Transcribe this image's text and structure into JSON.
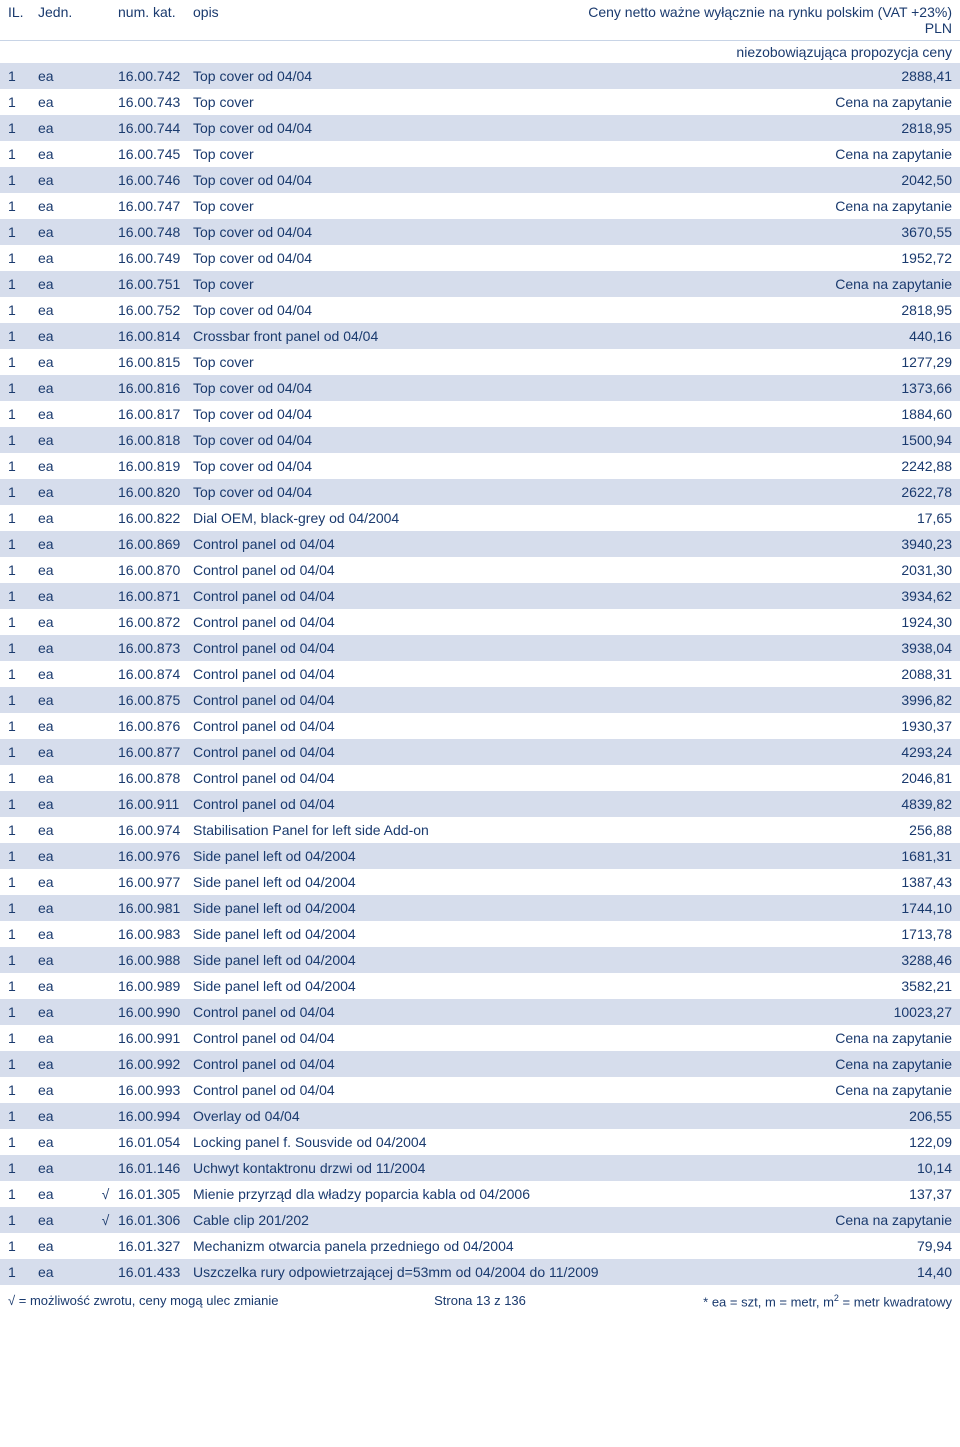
{
  "header": {
    "il": "IL.",
    "jedn": "Jedn.",
    "num_kat": "num. kat.",
    "opis": "opis",
    "right_note": "Ceny netto ważne wyłącznie na rynku polskim (VAT +23%) PLN",
    "sub_note": "niezobowiązująca propozycja ceny"
  },
  "rows": [
    {
      "il": "1",
      "jedn": "ea",
      "check": "",
      "num": "16.00.742",
      "opis": "Top cover od 04/04",
      "price": "2888,41"
    },
    {
      "il": "1",
      "jedn": "ea",
      "check": "",
      "num": "16.00.743",
      "opis": "Top cover",
      "price": "Cena na zapytanie"
    },
    {
      "il": "1",
      "jedn": "ea",
      "check": "",
      "num": "16.00.744",
      "opis": "Top cover od 04/04",
      "price": "2818,95"
    },
    {
      "il": "1",
      "jedn": "ea",
      "check": "",
      "num": "16.00.745",
      "opis": "Top cover",
      "price": "Cena na zapytanie"
    },
    {
      "il": "1",
      "jedn": "ea",
      "check": "",
      "num": "16.00.746",
      "opis": "Top cover od 04/04",
      "price": "2042,50"
    },
    {
      "il": "1",
      "jedn": "ea",
      "check": "",
      "num": "16.00.747",
      "opis": "Top cover",
      "price": "Cena na zapytanie"
    },
    {
      "il": "1",
      "jedn": "ea",
      "check": "",
      "num": "16.00.748",
      "opis": "Top cover od 04/04",
      "price": "3670,55"
    },
    {
      "il": "1",
      "jedn": "ea",
      "check": "",
      "num": "16.00.749",
      "opis": "Top cover od 04/04",
      "price": "1952,72"
    },
    {
      "il": "1",
      "jedn": "ea",
      "check": "",
      "num": "16.00.751",
      "opis": "Top cover",
      "price": "Cena na zapytanie"
    },
    {
      "il": "1",
      "jedn": "ea",
      "check": "",
      "num": "16.00.752",
      "opis": "Top cover od 04/04",
      "price": "2818,95"
    },
    {
      "il": "1",
      "jedn": "ea",
      "check": "",
      "num": "16.00.814",
      "opis": "Crossbar front panel od 04/04",
      "price": "440,16"
    },
    {
      "il": "1",
      "jedn": "ea",
      "check": "",
      "num": "16.00.815",
      "opis": "Top cover",
      "price": "1277,29"
    },
    {
      "il": "1",
      "jedn": "ea",
      "check": "",
      "num": "16.00.816",
      "opis": "Top cover od 04/04",
      "price": "1373,66"
    },
    {
      "il": "1",
      "jedn": "ea",
      "check": "",
      "num": "16.00.817",
      "opis": "Top cover od 04/04",
      "price": "1884,60"
    },
    {
      "il": "1",
      "jedn": "ea",
      "check": "",
      "num": "16.00.818",
      "opis": "Top cover od 04/04",
      "price": "1500,94"
    },
    {
      "il": "1",
      "jedn": "ea",
      "check": "",
      "num": "16.00.819",
      "opis": "Top cover od 04/04",
      "price": "2242,88"
    },
    {
      "il": "1",
      "jedn": "ea",
      "check": "",
      "num": "16.00.820",
      "opis": "Top cover od 04/04",
      "price": "2622,78"
    },
    {
      "il": "1",
      "jedn": "ea",
      "check": "",
      "num": "16.00.822",
      "opis": "Dial OEM, black-grey od 04/2004",
      "price": "17,65"
    },
    {
      "il": "1",
      "jedn": "ea",
      "check": "",
      "num": "16.00.869",
      "opis": "Control panel od 04/04",
      "price": "3940,23"
    },
    {
      "il": "1",
      "jedn": "ea",
      "check": "",
      "num": "16.00.870",
      "opis": "Control panel od 04/04",
      "price": "2031,30"
    },
    {
      "il": "1",
      "jedn": "ea",
      "check": "",
      "num": "16.00.871",
      "opis": "Control panel od 04/04",
      "price": "3934,62"
    },
    {
      "il": "1",
      "jedn": "ea",
      "check": "",
      "num": "16.00.872",
      "opis": "Control panel od 04/04",
      "price": "1924,30"
    },
    {
      "il": "1",
      "jedn": "ea",
      "check": "",
      "num": "16.00.873",
      "opis": "Control panel od 04/04",
      "price": "3938,04"
    },
    {
      "il": "1",
      "jedn": "ea",
      "check": "",
      "num": "16.00.874",
      "opis": "Control panel od 04/04",
      "price": "2088,31"
    },
    {
      "il": "1",
      "jedn": "ea",
      "check": "",
      "num": "16.00.875",
      "opis": "Control panel od 04/04",
      "price": "3996,82"
    },
    {
      "il": "1",
      "jedn": "ea",
      "check": "",
      "num": "16.00.876",
      "opis": "Control panel od 04/04",
      "price": "1930,37"
    },
    {
      "il": "1",
      "jedn": "ea",
      "check": "",
      "num": "16.00.877",
      "opis": "Control panel od 04/04",
      "price": "4293,24"
    },
    {
      "il": "1",
      "jedn": "ea",
      "check": "",
      "num": "16.00.878",
      "opis": "Control panel od 04/04",
      "price": "2046,81"
    },
    {
      "il": "1",
      "jedn": "ea",
      "check": "",
      "num": "16.00.911",
      "opis": "Control panel od 04/04",
      "price": "4839,82"
    },
    {
      "il": "1",
      "jedn": "ea",
      "check": "",
      "num": "16.00.974",
      "opis": "Stabilisation Panel for left side Add-on",
      "price": "256,88"
    },
    {
      "il": "1",
      "jedn": "ea",
      "check": "",
      "num": "16.00.976",
      "opis": "Side panel left od 04/2004",
      "price": "1681,31"
    },
    {
      "il": "1",
      "jedn": "ea",
      "check": "",
      "num": "16.00.977",
      "opis": "Side panel left od 04/2004",
      "price": "1387,43"
    },
    {
      "il": "1",
      "jedn": "ea",
      "check": "",
      "num": "16.00.981",
      "opis": "Side panel left od 04/2004",
      "price": "1744,10"
    },
    {
      "il": "1",
      "jedn": "ea",
      "check": "",
      "num": "16.00.983",
      "opis": "Side panel left od 04/2004",
      "price": "1713,78"
    },
    {
      "il": "1",
      "jedn": "ea",
      "check": "",
      "num": "16.00.988",
      "opis": "Side panel left od 04/2004",
      "price": "3288,46"
    },
    {
      "il": "1",
      "jedn": "ea",
      "check": "",
      "num": "16.00.989",
      "opis": "Side panel left od 04/2004",
      "price": "3582,21"
    },
    {
      "il": "1",
      "jedn": "ea",
      "check": "",
      "num": "16.00.990",
      "opis": "Control panel od 04/04",
      "price": "10023,27"
    },
    {
      "il": "1",
      "jedn": "ea",
      "check": "",
      "num": "16.00.991",
      "opis": "Control panel od 04/04",
      "price": "Cena na zapytanie"
    },
    {
      "il": "1",
      "jedn": "ea",
      "check": "",
      "num": "16.00.992",
      "opis": "Control panel od 04/04",
      "price": "Cena na zapytanie"
    },
    {
      "il": "1",
      "jedn": "ea",
      "check": "",
      "num": "16.00.993",
      "opis": "Control panel od 04/04",
      "price": "Cena na zapytanie"
    },
    {
      "il": "1",
      "jedn": "ea",
      "check": "",
      "num": "16.00.994",
      "opis": "Overlay od 04/04",
      "price": "206,55"
    },
    {
      "il": "1",
      "jedn": "ea",
      "check": "",
      "num": "16.01.054",
      "opis": "Locking panel f. Sousvide od 04/2004",
      "price": "122,09"
    },
    {
      "il": "1",
      "jedn": "ea",
      "check": "",
      "num": "16.01.146",
      "opis": "Uchwyt kontaktronu drzwi od 11/2004",
      "price": "10,14"
    },
    {
      "il": "1",
      "jedn": "ea",
      "check": "√",
      "num": "16.01.305",
      "opis": "Mienie przyrząd dla władzy poparcia kabla od 04/2006",
      "price": "137,37"
    },
    {
      "il": "1",
      "jedn": "ea",
      "check": "√",
      "num": "16.01.306",
      "opis": "Cable clip 201/202",
      "price": "Cena na zapytanie"
    },
    {
      "il": "1",
      "jedn": "ea",
      "check": "",
      "num": "16.01.327",
      "opis": "Mechanizm otwarcia panela przedniego od 04/2004",
      "price": "79,94"
    },
    {
      "il": "1",
      "jedn": "ea",
      "check": "",
      "num": "16.01.433",
      "opis": "Uszczelka rury odpowietrzającej d=53mm od 04/2004 do 11/2009",
      "price": "14,40"
    }
  ],
  "footer": {
    "left": "√ = możliwość zwrotu, ceny mogą ulec zmianie",
    "center": "Strona 13 z 136",
    "right_html": "* ea = szt, m = metr, m<sup>2</sup> = metr kwadratowy"
  },
  "style": {
    "odd_row_bg": "#d6ddec",
    "even_row_bg": "#ffffff",
    "text_color": "#1a3a6e",
    "font_size": 14
  }
}
